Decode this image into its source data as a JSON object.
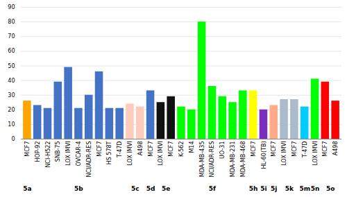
{
  "chart_data": {
    "type": "bar",
    "categories": [
      "MCF7",
      "HOP-92",
      "NCI-H522",
      "SNB-75",
      "LOX IMVI",
      "OVCAR-4",
      "NCI/ADR-RES",
      "MCF7",
      "HS 578T",
      "T-47D",
      "LOX IMVI",
      "A498",
      "MCF7",
      "LOX IMVI",
      "MCF7",
      "K-562",
      "M14",
      "MDA-MB-435",
      "NCI/ADR-RES",
      "UO-31",
      "MDA-MB-231",
      "MDA-MB-468",
      "MCF7",
      "HL-60(TB)",
      "MCF7",
      "LOX IMVI",
      "MCF7",
      "T-47D",
      "LOX IMVI",
      "MCF7",
      "A498"
    ],
    "values": [
      26,
      23,
      21,
      39,
      49,
      21,
      30,
      46,
      21,
      21,
      24,
      22,
      33,
      25,
      29,
      22,
      20,
      80,
      36,
      29,
      25,
      33,
      33,
      20,
      23,
      27,
      27,
      22,
      41,
      39,
      26
    ],
    "colors": [
      "#FFA500",
      "#4472C4",
      "#4472C4",
      "#4472C4",
      "#4472C4",
      "#4472C4",
      "#4472C4",
      "#4472C4",
      "#4472C4",
      "#4472C4",
      "#FFCCBB",
      "#FFCCBB",
      "#4472C4",
      "#111111",
      "#111111",
      "#00FF00",
      "#00FF00",
      "#00FF00",
      "#00FF00",
      "#00FF00",
      "#00FF00",
      "#00FF00",
      "#FFFF00",
      "#7B2FBE",
      "#FFAA88",
      "#AABBCC",
      "#AABBCC",
      "#00CCFF",
      "#00FF00",
      "#FF0000",
      "#FF0000"
    ],
    "groups": [
      "5a",
      "5b",
      "5b",
      "5b",
      "5b",
      "5b",
      "5b",
      "5b",
      "5b",
      "5b",
      "5c",
      "5c",
      "5d",
      "5e",
      "5e",
      "5f",
      "5f",
      "5f",
      "5f",
      "5f",
      "5f",
      "5f",
      "5h",
      "5i",
      "5j",
      "5k",
      "5k",
      "5m",
      "5n",
      "5o",
      "5o"
    ],
    "ylim": [
      0,
      90
    ],
    "yticks": [
      0,
      10,
      20,
      30,
      40,
      50,
      60,
      70,
      80,
      90
    ],
    "grid": true
  }
}
